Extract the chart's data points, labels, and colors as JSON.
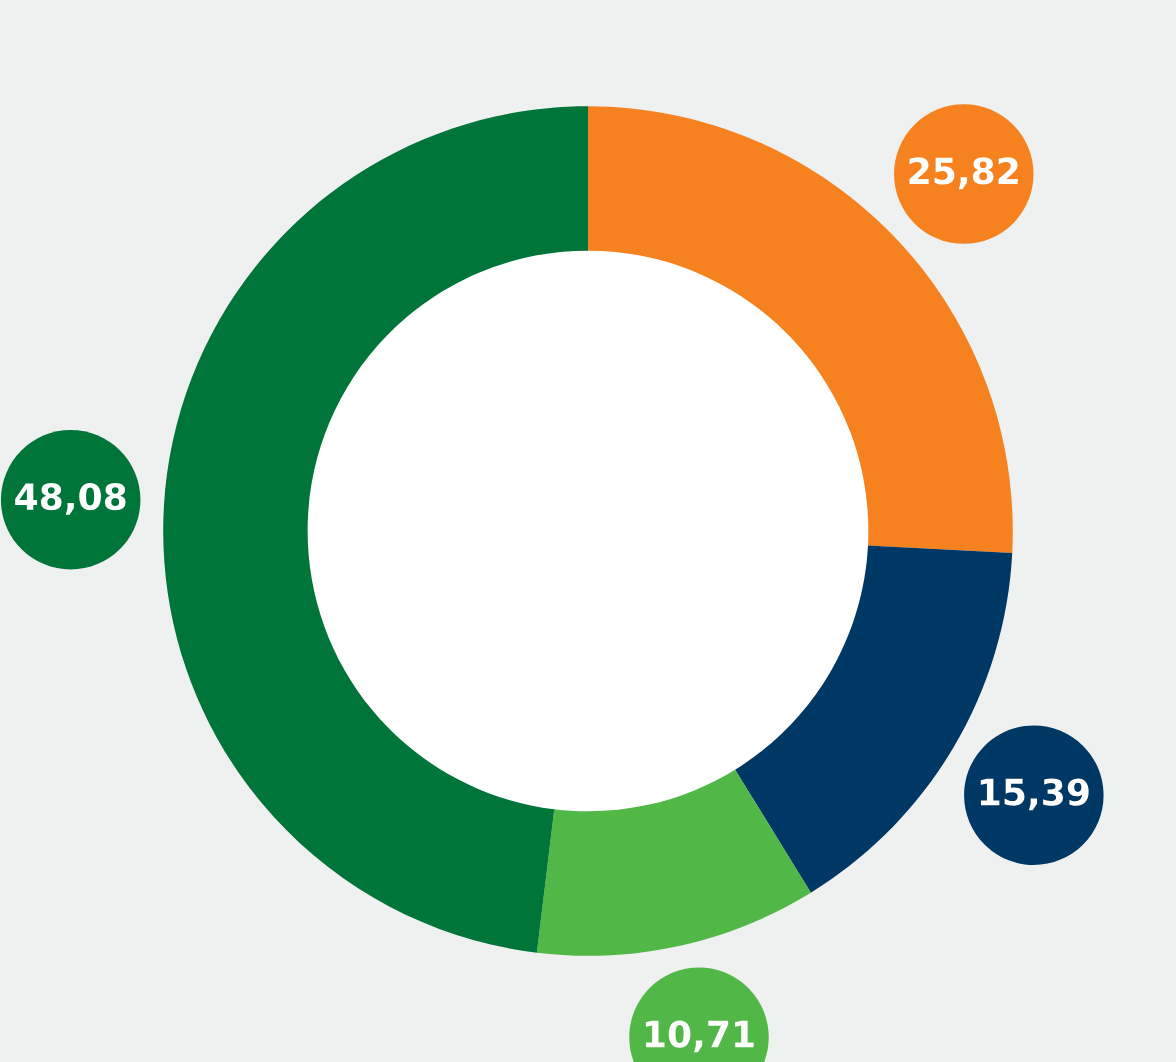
{
  "chart_data": {
    "type": "donut",
    "categories": [
      null,
      null,
      null,
      null
    ],
    "values": [
      25.82,
      15.39,
      10.71,
      48.08
    ],
    "colors": [
      "#f5821f",
      "#003865",
      "#51b848",
      "#00753a"
    ],
    "value_labels": [
      "25,82",
      "15,39",
      "10,71",
      "48,08"
    ]
  }
}
